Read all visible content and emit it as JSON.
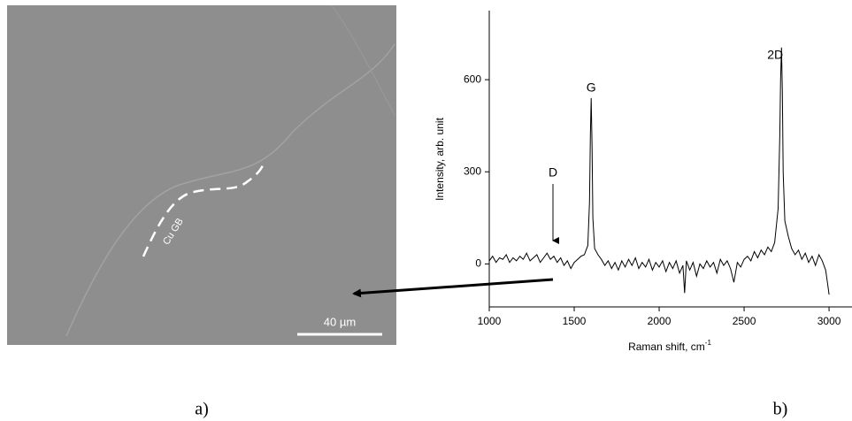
{
  "panel_a": {
    "label": "a)",
    "boundary_label": "Cu GB",
    "scale_bar": "40 µm"
  },
  "panel_b": {
    "label": "b)"
  },
  "chart_data": {
    "type": "line",
    "xlabel": "Raman shift, cm",
    "xlabel_sup": "-1",
    "ylabel": "Intensity, arb. unit",
    "annotations": [
      "D",
      "G",
      "2D"
    ],
    "xlim": [
      1000,
      3135
    ],
    "ylim": [
      -140,
      825
    ],
    "xticks": [
      1000,
      1500,
      2000,
      2500,
      3000
    ],
    "yticks": [
      0,
      300,
      600
    ],
    "series": [
      {
        "color": "#000000",
        "x": [
          1000,
          1020,
          1040,
          1060,
          1080,
          1100,
          1120,
          1140,
          1160,
          1180,
          1200,
          1220,
          1240,
          1260,
          1280,
          1300,
          1320,
          1340,
          1360,
          1380,
          1400,
          1420,
          1440,
          1460,
          1480,
          1500,
          1520,
          1540,
          1560,
          1580,
          1590,
          1595,
          1600,
          1605,
          1610,
          1620,
          1640,
          1660,
          1680,
          1700,
          1720,
          1740,
          1760,
          1780,
          1800,
          1820,
          1840,
          1860,
          1880,
          1900,
          1920,
          1940,
          1960,
          1980,
          2000,
          2020,
          2040,
          2060,
          2080,
          2100,
          2120,
          2140,
          2150,
          2160,
          2180,
          2200,
          2220,
          2240,
          2260,
          2280,
          2300,
          2320,
          2340,
          2360,
          2380,
          2400,
          2420,
          2440,
          2460,
          2480,
          2500,
          2520,
          2540,
          2560,
          2580,
          2600,
          2620,
          2640,
          2660,
          2680,
          2700,
          2710,
          2715,
          2720,
          2725,
          2730,
          2740,
          2760,
          2780,
          2800,
          2820,
          2840,
          2860,
          2880,
          2900,
          2920,
          2940,
          2960,
          2980,
          2990,
          3000
        ],
        "values": [
          10,
          25,
          5,
          20,
          15,
          30,
          5,
          20,
          10,
          25,
          15,
          35,
          10,
          20,
          30,
          5,
          20,
          35,
          15,
          25,
          5,
          20,
          -5,
          10,
          -15,
          5,
          15,
          25,
          30,
          60,
          200,
          420,
          540,
          380,
          150,
          50,
          30,
          15,
          -5,
          10,
          -15,
          5,
          -20,
          10,
          -10,
          15,
          -5,
          20,
          -15,
          5,
          -10,
          15,
          -20,
          5,
          -10,
          10,
          -25,
          5,
          -15,
          10,
          -30,
          -5,
          -95,
          10,
          -20,
          5,
          -40,
          0,
          -15,
          10,
          -10,
          5,
          -30,
          15,
          -5,
          10,
          -15,
          -60,
          5,
          -10,
          15,
          25,
          10,
          40,
          20,
          45,
          30,
          55,
          40,
          70,
          180,
          420,
          600,
          705,
          560,
          300,
          140,
          90,
          50,
          30,
          45,
          15,
          35,
          5,
          25,
          -5,
          30,
          10,
          -20,
          -60,
          -100
        ]
      }
    ]
  }
}
